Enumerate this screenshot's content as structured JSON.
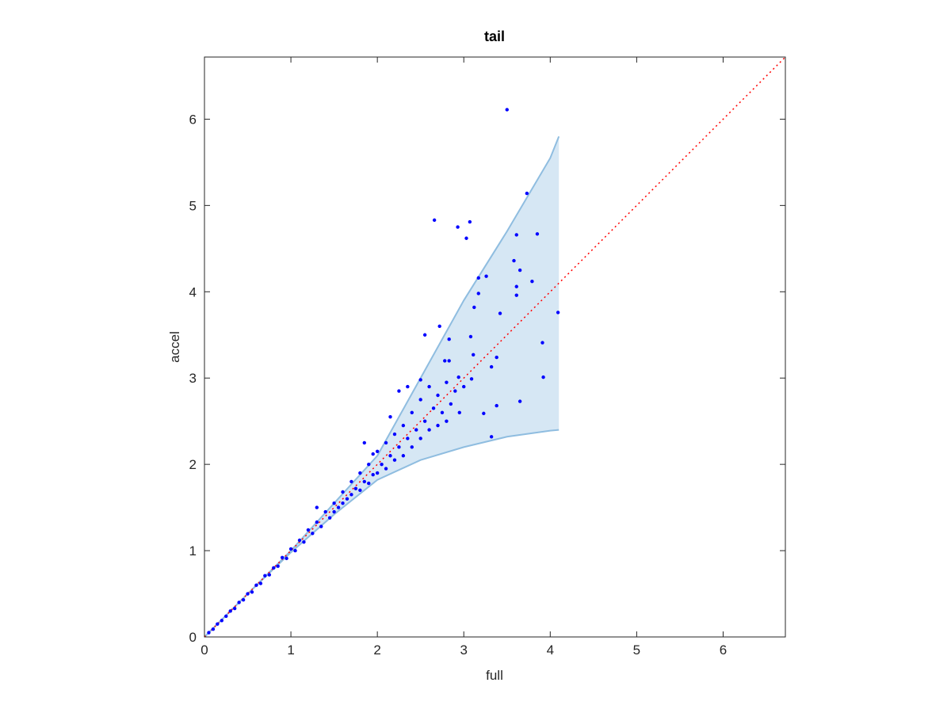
{
  "chart_data": {
    "type": "scatter",
    "title": "tail",
    "xlabel": "full",
    "ylabel": "accel",
    "xlim": [
      0,
      6.72
    ],
    "ylim": [
      0,
      6.72
    ],
    "xticks": [
      0,
      1,
      2,
      3,
      4,
      5,
      6
    ],
    "yticks": [
      0,
      1,
      2,
      3,
      4,
      5,
      6
    ],
    "band": {
      "color": "#c8dff0",
      "edge_color": "#8fbde0",
      "x": [
        0,
        0.5,
        1,
        1.5,
        2,
        2.5,
        3,
        3.5,
        4,
        4.1
      ],
      "upper": [
        0,
        0.5,
        1.0,
        1.55,
        2.1,
        3.0,
        3.9,
        4.7,
        5.55,
        5.8
      ],
      "lower": [
        0,
        0.5,
        0.98,
        1.42,
        1.82,
        2.05,
        2.2,
        2.32,
        2.39,
        2.4
      ]
    },
    "reference_line": {
      "color": "#ff0000",
      "x": [
        0,
        6.72
      ],
      "y": [
        0,
        6.72
      ]
    },
    "points": {
      "color": "#0000ff",
      "x": [
        0.05,
        0.1,
        0.15,
        0.2,
        0.25,
        0.3,
        0.35,
        0.4,
        0.45,
        0.5,
        0.55,
        0.6,
        0.65,
        0.7,
        0.75,
        0.8,
        0.85,
        0.9,
        0.95,
        1.0,
        1.05,
        1.1,
        1.15,
        1.2,
        1.25,
        1.3,
        1.35,
        1.4,
        1.45,
        1.5,
        1.5,
        1.55,
        1.6,
        1.6,
        1.65,
        1.7,
        1.7,
        1.75,
        1.8,
        1.8,
        1.85,
        1.9,
        1.9,
        1.95,
        2.0,
        2.0,
        2.05,
        2.1,
        2.1,
        2.15,
        2.2,
        2.2,
        2.25,
        2.3,
        2.3,
        2.35,
        2.4,
        2.4,
        2.45,
        2.5,
        2.5,
        2.55,
        2.6,
        2.6,
        2.65,
        2.7,
        2.7,
        2.75,
        2.8,
        2.8,
        2.85,
        2.9,
        1.85,
        2.25,
        2.5,
        2.15,
        3.0,
        2.95,
        1.3,
        1.95,
        2.35,
        3.5,
        3.73,
        2.66,
        2.93,
        3.07,
        3.03,
        3.61,
        3.85,
        3.58,
        3.65,
        3.17,
        3.26,
        3.79,
        3.61,
        3.61,
        3.17,
        3.12,
        3.42,
        4.09,
        2.72,
        2.55,
        3.08,
        3.91,
        2.83,
        3.11,
        3.38,
        2.83,
        2.78,
        3.32,
        3.92,
        2.94,
        3.09,
        3.65,
        3.38,
        3.23,
        3.32
      ],
      "y": [
        0.05,
        0.09,
        0.15,
        0.19,
        0.24,
        0.3,
        0.33,
        0.4,
        0.43,
        0.5,
        0.52,
        0.6,
        0.62,
        0.71,
        0.72,
        0.8,
        0.82,
        0.92,
        0.91,
        1.02,
        1.0,
        1.12,
        1.1,
        1.24,
        1.2,
        1.33,
        1.28,
        1.45,
        1.38,
        1.55,
        1.45,
        1.5,
        1.68,
        1.55,
        1.6,
        1.8,
        1.65,
        1.72,
        1.9,
        1.7,
        1.8,
        2.0,
        1.78,
        1.88,
        2.15,
        1.9,
        2.0,
        2.25,
        1.95,
        2.1,
        2.35,
        2.05,
        2.2,
        2.45,
        2.1,
        2.3,
        2.6,
        2.2,
        2.4,
        2.75,
        2.3,
        2.5,
        2.9,
        2.4,
        2.65,
        2.8,
        2.45,
        2.6,
        2.95,
        2.5,
        2.7,
        2.85,
        2.25,
        2.85,
        2.98,
        2.55,
        2.9,
        2.6,
        1.5,
        2.12,
        2.9,
        6.11,
        5.14,
        4.83,
        4.75,
        4.81,
        4.62,
        4.66,
        4.67,
        4.36,
        4.25,
        4.16,
        4.18,
        4.12,
        4.06,
        3.96,
        3.98,
        3.82,
        3.75,
        3.76,
        3.6,
        3.5,
        3.48,
        3.41,
        3.45,
        3.27,
        3.24,
        3.2,
        3.2,
        3.13,
        3.01,
        3.01,
        2.99,
        2.73,
        2.68,
        2.59,
        2.32
      ]
    }
  }
}
